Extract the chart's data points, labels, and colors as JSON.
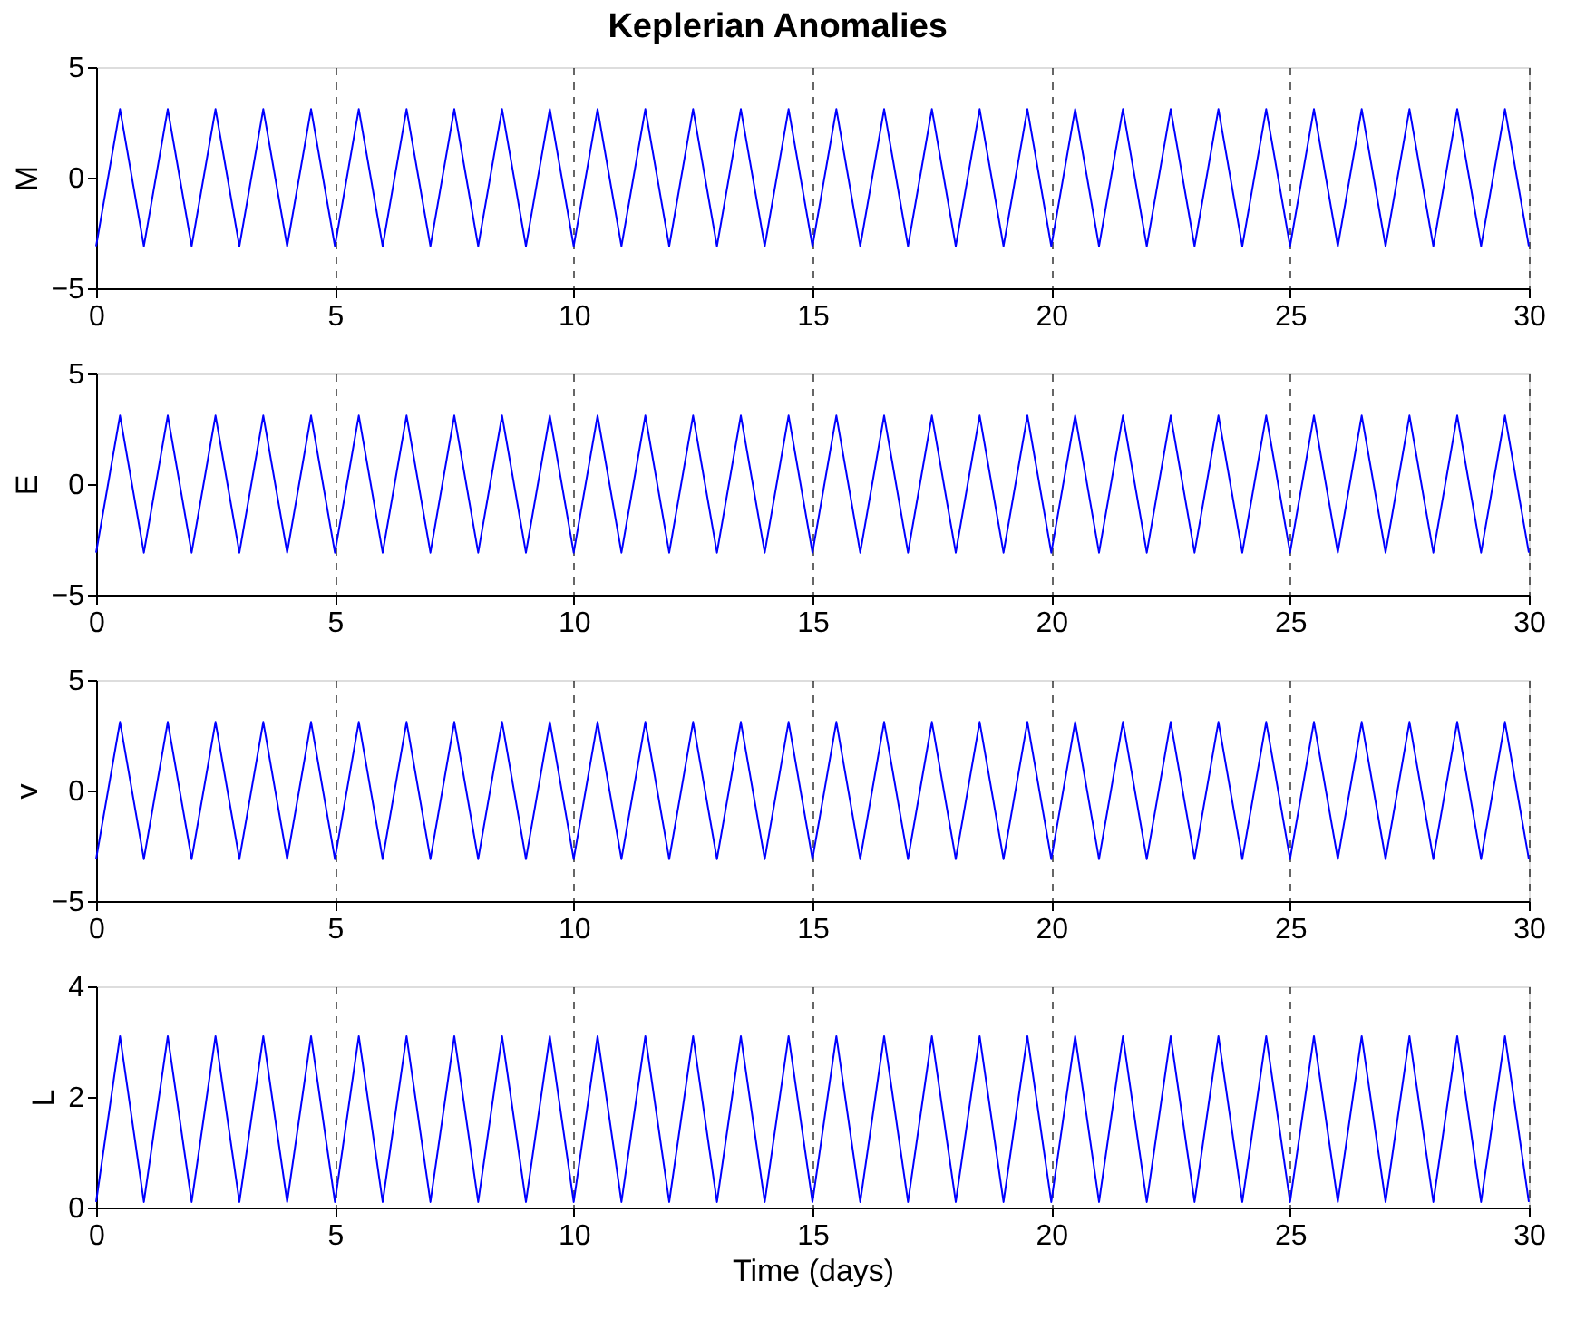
{
  "chart_data": [
    {
      "type": "line",
      "title": "Keplerian Anomalies",
      "ylabel": "M",
      "xlim": [
        0,
        30
      ],
      "xticks": [
        0,
        5,
        10,
        15,
        20,
        25,
        30
      ],
      "ylim": [
        -5,
        5
      ],
      "yticks": [
        -5,
        0,
        5
      ],
      "grid": "x",
      "x": [
        0,
        0.5,
        1,
        1.5,
        2,
        2.5,
        3,
        3.5,
        4,
        4.5,
        5,
        5.5,
        6,
        6.5,
        7,
        7.5,
        8,
        8.5,
        9,
        9.5,
        10,
        10.5,
        11,
        11.5,
        12,
        12.5,
        13,
        13.5,
        14,
        14.5,
        15,
        15.5,
        16,
        16.5,
        17,
        17.5,
        18,
        18.5,
        19,
        19.5,
        20,
        20.5,
        21,
        21.5,
        22,
        22.5,
        23,
        23.5,
        24,
        24.5,
        25,
        25.5,
        26,
        26.5,
        27,
        27.5,
        28,
        28.5,
        29,
        29.5,
        30
      ],
      "series": [
        {
          "color": "#0000ff",
          "values": [
            -3.1,
            3.1,
            -3.1,
            3.1,
            -3.1,
            3.1,
            -3.1,
            3.1,
            -3.1,
            3.1,
            -3.1,
            3.1,
            -3.1,
            3.1,
            -3.1,
            3.1,
            -3.1,
            3.1,
            -3.1,
            3.1,
            -3.1,
            3.1,
            -3.1,
            3.1,
            -3.1,
            3.1,
            -3.1,
            3.1,
            -3.1,
            3.1,
            -3.1,
            3.1,
            -3.1,
            3.1,
            -3.1,
            3.1,
            -3.1,
            3.1,
            -3.1,
            3.1,
            -3.1,
            3.1,
            -3.1,
            3.1,
            -3.1,
            3.1,
            -3.1,
            3.1,
            -3.1,
            3.1,
            -3.1,
            3.1,
            -3.1,
            3.1,
            -3.1,
            3.1,
            -3.1,
            3.1,
            -3.1,
            3.1,
            -3.1
          ]
        }
      ]
    },
    {
      "type": "line",
      "ylabel": "E",
      "xlim": [
        0,
        30
      ],
      "xticks": [
        0,
        5,
        10,
        15,
        20,
        25,
        30
      ],
      "ylim": [
        -5,
        5
      ],
      "yticks": [
        -5,
        0,
        5
      ],
      "grid": "x",
      "x": [
        0,
        0.5,
        1,
        1.5,
        2,
        2.5,
        3,
        3.5,
        4,
        4.5,
        5,
        5.5,
        6,
        6.5,
        7,
        7.5,
        8,
        8.5,
        9,
        9.5,
        10,
        10.5,
        11,
        11.5,
        12,
        12.5,
        13,
        13.5,
        14,
        14.5,
        15,
        15.5,
        16,
        16.5,
        17,
        17.5,
        18,
        18.5,
        19,
        19.5,
        20,
        20.5,
        21,
        21.5,
        22,
        22.5,
        23,
        23.5,
        24,
        24.5,
        25,
        25.5,
        26,
        26.5,
        27,
        27.5,
        28,
        28.5,
        29,
        29.5,
        30
      ],
      "series": [
        {
          "color": "#0000ff",
          "values": [
            -3.1,
            3.1,
            -3.1,
            3.1,
            -3.1,
            3.1,
            -3.1,
            3.1,
            -3.1,
            3.1,
            -3.1,
            3.1,
            -3.1,
            3.1,
            -3.1,
            3.1,
            -3.1,
            3.1,
            -3.1,
            3.1,
            -3.1,
            3.1,
            -3.1,
            3.1,
            -3.1,
            3.1,
            -3.1,
            3.1,
            -3.1,
            3.1,
            -3.1,
            3.1,
            -3.1,
            3.1,
            -3.1,
            3.1,
            -3.1,
            3.1,
            -3.1,
            3.1,
            -3.1,
            3.1,
            -3.1,
            3.1,
            -3.1,
            3.1,
            -3.1,
            3.1,
            -3.1,
            3.1,
            -3.1,
            3.1,
            -3.1,
            3.1,
            -3.1,
            3.1,
            -3.1,
            3.1,
            -3.1,
            3.1,
            -3.1
          ]
        }
      ]
    },
    {
      "type": "line",
      "ylabel": "v",
      "xlim": [
        0,
        30
      ],
      "xticks": [
        0,
        5,
        10,
        15,
        20,
        25,
        30
      ],
      "ylim": [
        -5,
        5
      ],
      "yticks": [
        -5,
        0,
        5
      ],
      "grid": "x",
      "x": [
        0,
        0.5,
        1,
        1.5,
        2,
        2.5,
        3,
        3.5,
        4,
        4.5,
        5,
        5.5,
        6,
        6.5,
        7,
        7.5,
        8,
        8.5,
        9,
        9.5,
        10,
        10.5,
        11,
        11.5,
        12,
        12.5,
        13,
        13.5,
        14,
        14.5,
        15,
        15.5,
        16,
        16.5,
        17,
        17.5,
        18,
        18.5,
        19,
        19.5,
        20,
        20.5,
        21,
        21.5,
        22,
        22.5,
        23,
        23.5,
        24,
        24.5,
        25,
        25.5,
        26,
        26.5,
        27,
        27.5,
        28,
        28.5,
        29,
        29.5,
        30
      ],
      "series": [
        {
          "color": "#0000ff",
          "values": [
            -3.1,
            3.1,
            -3.1,
            3.1,
            -3.1,
            3.1,
            -3.1,
            3.1,
            -3.1,
            3.1,
            -3.1,
            3.1,
            -3.1,
            3.1,
            -3.1,
            3.1,
            -3.1,
            3.1,
            -3.1,
            3.1,
            -3.1,
            3.1,
            -3.1,
            3.1,
            -3.1,
            3.1,
            -3.1,
            3.1,
            -3.1,
            3.1,
            -3.1,
            3.1,
            -3.1,
            3.1,
            -3.1,
            3.1,
            -3.1,
            3.1,
            -3.1,
            3.1,
            -3.1,
            3.1,
            -3.1,
            3.1,
            -3.1,
            3.1,
            -3.1,
            3.1,
            -3.1,
            3.1,
            -3.1,
            3.1,
            -3.1,
            3.1,
            -3.1,
            3.1,
            -3.1,
            3.1,
            -3.1,
            3.1,
            -3.1
          ]
        }
      ]
    },
    {
      "type": "line",
      "ylabel": "L",
      "xlabel": "Time (days)",
      "xlim": [
        0,
        30
      ],
      "xticks": [
        0,
        5,
        10,
        15,
        20,
        25,
        30
      ],
      "ylim": [
        0,
        4
      ],
      "yticks": [
        0,
        2,
        4
      ],
      "grid": "x",
      "x": [
        0,
        0.5,
        1,
        1.5,
        2,
        2.5,
        3,
        3.5,
        4,
        4.5,
        5,
        5.5,
        6,
        6.5,
        7,
        7.5,
        8,
        8.5,
        9,
        9.5,
        10,
        10.5,
        11,
        11.5,
        12,
        12.5,
        13,
        13.5,
        14,
        14.5,
        15,
        15.5,
        16,
        16.5,
        17,
        17.5,
        18,
        18.5,
        19,
        19.5,
        20,
        20.5,
        21,
        21.5,
        22,
        22.5,
        23,
        23.5,
        24,
        24.5,
        25,
        25.5,
        26,
        26.5,
        27,
        27.5,
        28,
        28.5,
        29,
        29.5,
        30
      ],
      "series": [
        {
          "color": "#0000ff",
          "values": [
            0.1,
            3.1,
            0.1,
            3.1,
            0.1,
            3.1,
            0.1,
            3.1,
            0.1,
            3.1,
            0.1,
            3.1,
            0.1,
            3.1,
            0.1,
            3.1,
            0.1,
            3.1,
            0.1,
            3.1,
            0.1,
            3.1,
            0.1,
            3.1,
            0.1,
            3.1,
            0.1,
            3.1,
            0.1,
            3.1,
            0.1,
            3.1,
            0.1,
            3.1,
            0.1,
            3.1,
            0.1,
            3.1,
            0.1,
            3.1,
            0.1,
            3.1,
            0.1,
            3.1,
            0.1,
            3.1,
            0.1,
            3.1,
            0.1,
            3.1,
            0.1,
            3.1,
            0.1,
            3.1,
            0.1,
            3.1,
            0.1,
            3.1,
            0.1,
            3.1,
            0.1
          ]
        }
      ]
    }
  ]
}
